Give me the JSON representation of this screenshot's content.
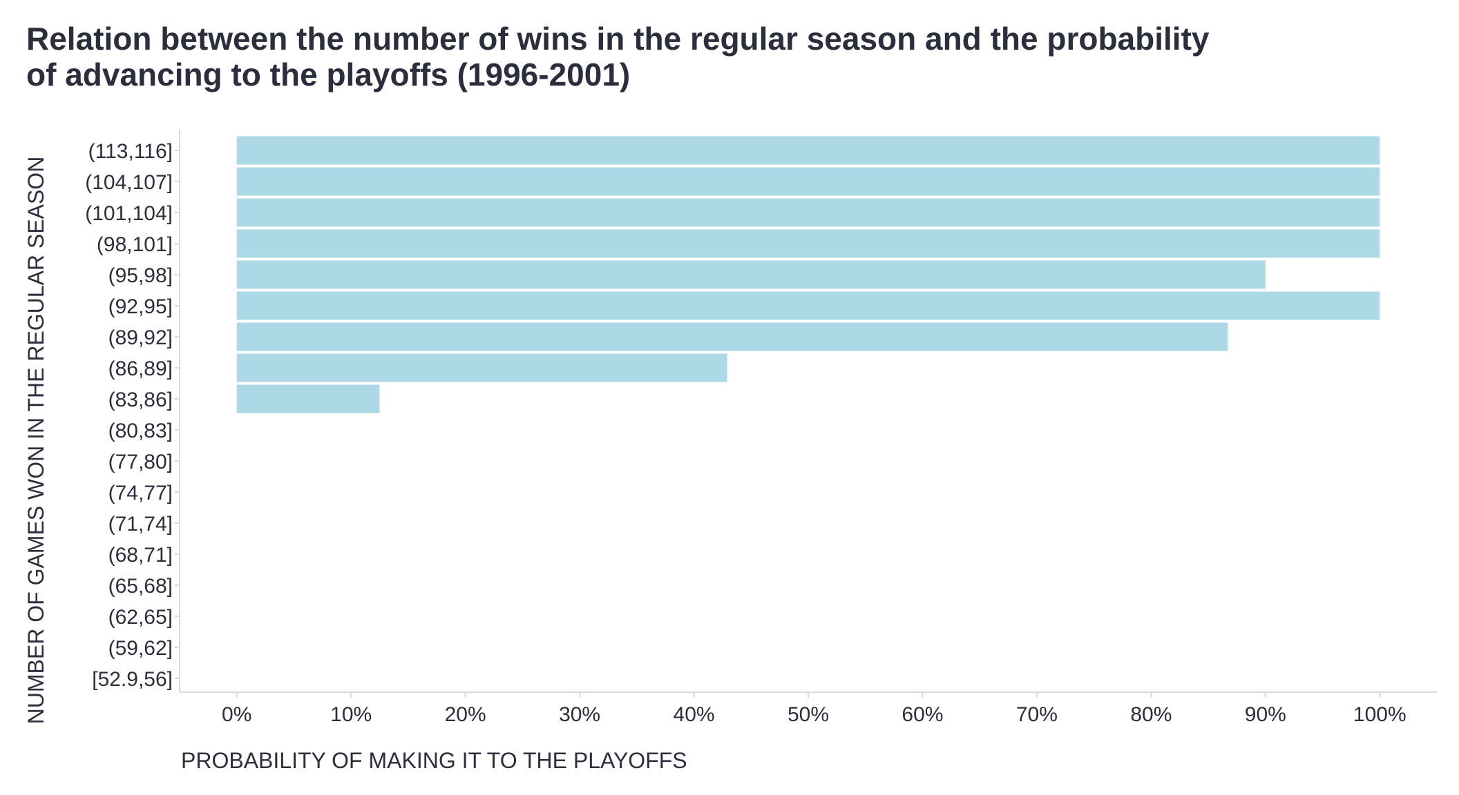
{
  "chart_data": {
    "type": "bar",
    "orientation": "horizontal",
    "title_lines": [
      "Relation between the number of wins in the regular season and the probability",
      "of advancing to the playoffs (1996-2001)"
    ],
    "xlabel": "PROBABILITY OF MAKING IT TO THE PLAYOFFS",
    "ylabel": "NUMBER OF GAMES WON IN THE REGULAR SEASON",
    "categories": [
      "(113,116]",
      "(104,107]",
      "(101,104]",
      "(98,101]",
      "(95,98]",
      "(92,95]",
      "(89,92]",
      "(86,89]",
      "(83,86]",
      "(80,83]",
      "(77,80]",
      "(74,77]",
      "(71,74]",
      "(68,71]",
      "(65,68]",
      "(62,65]",
      "(59,62]",
      "[52.9,56]"
    ],
    "values": [
      1.0,
      1.0,
      1.0,
      1.0,
      0.9,
      1.0,
      0.867,
      0.429,
      0.125,
      0,
      0,
      0,
      0,
      0,
      0,
      0,
      0,
      0
    ],
    "xlim": [
      -0.05,
      1.05
    ],
    "x_ticks": [
      0,
      0.1,
      0.2,
      0.3,
      0.4,
      0.5,
      0.6,
      0.7,
      0.8,
      0.9,
      1.0
    ],
    "x_tick_labels": [
      "0%",
      "10%",
      "20%",
      "30%",
      "40%",
      "50%",
      "60%",
      "70%",
      "80%",
      "90%",
      "100%"
    ],
    "grid": false,
    "legend": "none",
    "colors": {
      "bar": "#add8e6",
      "text": "#2b2e3d",
      "axis": "#d9d9d9"
    }
  }
}
